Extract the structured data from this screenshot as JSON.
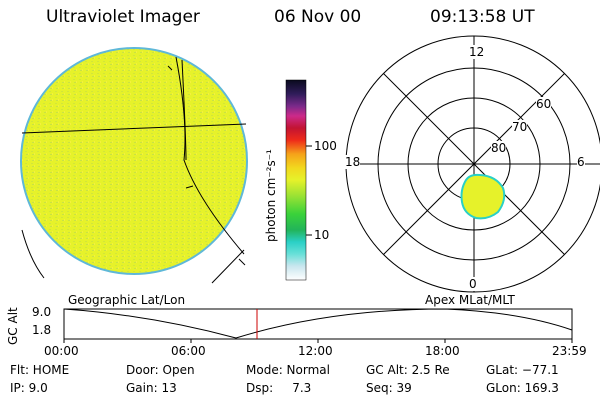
{
  "header": {
    "title": "Ultraviolet Imager",
    "date": "06 Nov 00",
    "time": "09:13:58 UT"
  },
  "colorbar": {
    "unit_label": "photon cm⁻²s⁻¹",
    "ticks": [
      "100",
      "10"
    ]
  },
  "polar_plot": {
    "mlt_labels": {
      "top": "12",
      "left": "18",
      "right": "6",
      "bottom": "0"
    },
    "lat_labels": [
      "60",
      "70",
      "80"
    ]
  },
  "panel_labels": {
    "left": "Geographic Lat/Lon",
    "right": "Apex MLat/MLT"
  },
  "altitude_plot": {
    "y_label": "GC Alt",
    "y_ticks": [
      "9.0",
      "1.8"
    ],
    "x_ticks": [
      "00:00",
      "06:00",
      "12:00",
      "18:00",
      "23:59"
    ],
    "marker_color": "#cc0000"
  },
  "info": {
    "flt": "Flt: HOME",
    "ip": "IP:  9.0",
    "door": "Door: Open",
    "gain": "Gain: 13",
    "mode": "Mode: Normal",
    "dsp": "Dsp:     7.3",
    "gcalt": "GC Alt: 2.5 Re",
    "seq": "Seq: 39",
    "glat": "GLat: −77.1",
    "glon": "GLon: 169.3"
  }
}
